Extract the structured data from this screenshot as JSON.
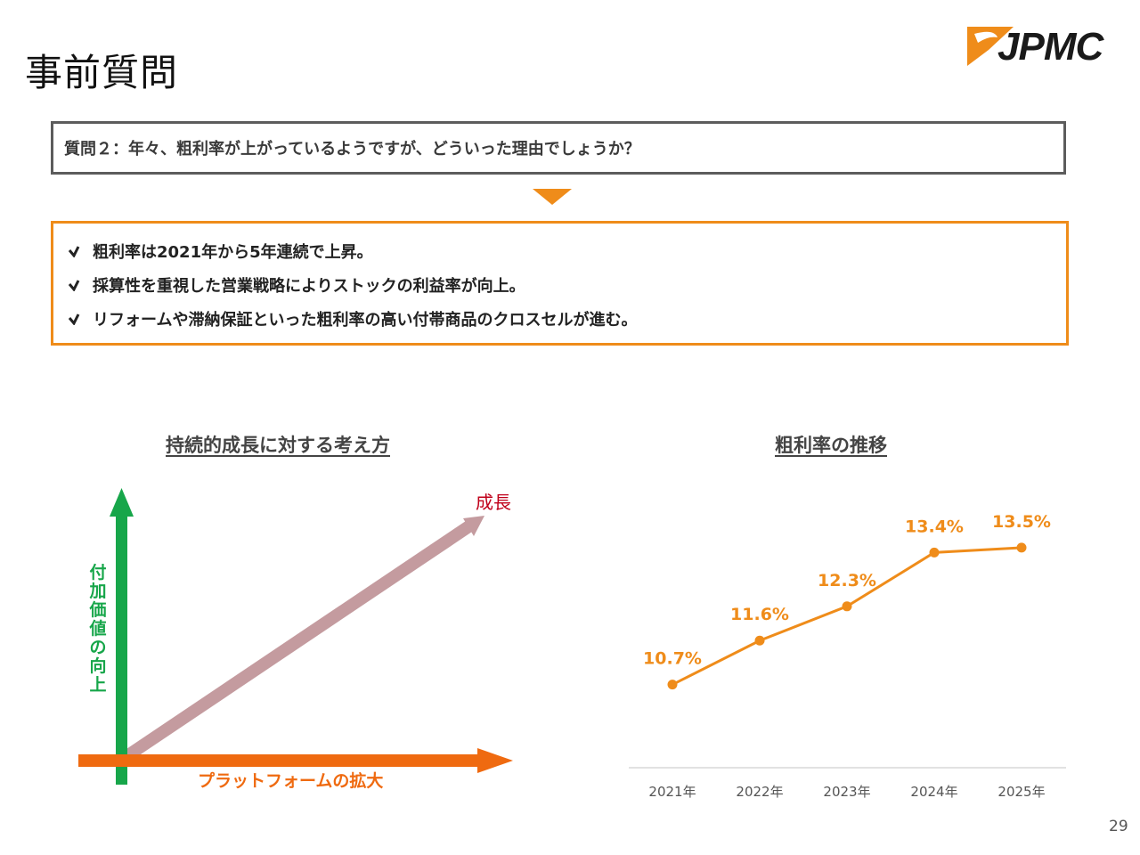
{
  "page": {
    "title": "事前質問",
    "logo_text": "JPMC",
    "page_number": "29"
  },
  "question": {
    "text": "質問２：年々、粗利率が上がっているようですが、どういった理由でしょうか？"
  },
  "answers": [
    "粗利率は2021年から5年連続で上昇。",
    "採算性を重視した営業戦略によりストックの利益率が向上。",
    "リフォームや滞納保証といった粗利率の高い付帯商品のクロスセルが進む。"
  ],
  "concept": {
    "title": "持続的成長に対する考え方",
    "growth_label": "成長",
    "y_axis_label": "付加価値の向上",
    "x_axis_label": "プラットフォームの拡大"
  },
  "colors": {
    "accent_orange": "#ef8c1a",
    "green": "#17a64a",
    "growth_arrow": "#c49b9f",
    "growth_text": "#c0001a"
  },
  "chart_data": {
    "type": "line",
    "title": "粗利率の推移",
    "categories": [
      "2021年",
      "2022年",
      "2023年",
      "2024年",
      "2025年"
    ],
    "values": [
      10.7,
      11.6,
      12.3,
      13.4,
      13.5
    ],
    "labels": [
      "10.7%",
      "11.6%",
      "12.3%",
      "13.4%",
      "13.5%"
    ],
    "xlabel": "",
    "ylabel": "",
    "ylim": [
      9.0,
      14.5
    ],
    "grid": false,
    "legend": "none"
  }
}
